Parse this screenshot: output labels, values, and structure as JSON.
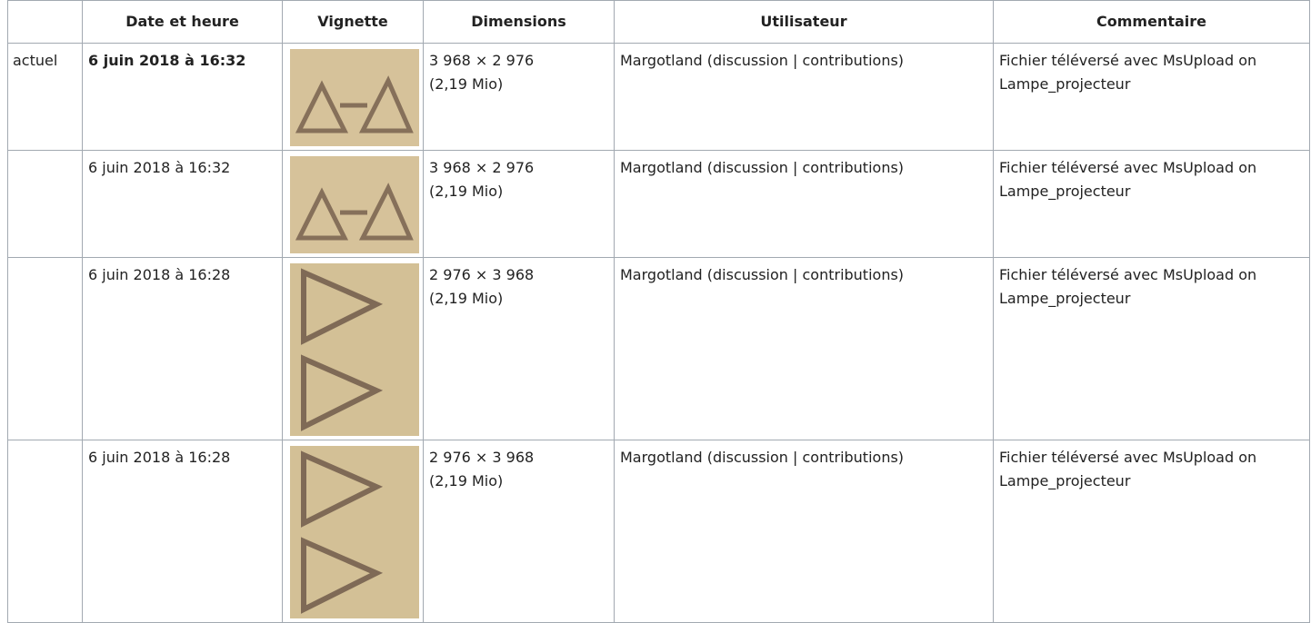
{
  "table": {
    "headers": [
      "Date et heure",
      "Vignette",
      "Dimensions",
      "Utilisateur",
      "Commentaire"
    ],
    "rows": [
      {
        "status": "actuel",
        "date": "6 juin 2018 à 16:32",
        "dimensions": "3 968 × 2 976",
        "size": "(2,19 Mio)",
        "user": "Margotland (discussion | contributions)",
        "comment": "Fichier téléversé avec MsUpload on Lampe_projecteur"
      },
      {
        "date": "6 juin 2018 à 16:32",
        "dimensions": "3 968 × 2 976",
        "size": "(2,19 Mio)",
        "user": "Margotland (discussion | contributions)",
        "comment": "Fichier téléversé avec MsUpload on Lampe_projecteur"
      },
      {
        "date": "6 juin 2018 à 16:28",
        "dimensions": "2 976 × 3 968",
        "size": "(2,19 Mio)",
        "user": "Margotland (discussion | contributions)",
        "comment": "Fichier téléversé avec MsUpload on Lampe_projecteur"
      },
      {
        "date": "6 juin 2018 à 16:28",
        "dimensions": "2 976 × 3 968",
        "size": "(2,19 Mio)",
        "user": "Margotland (discussion | contributions)",
        "comment": "Fichier téléversé avec MsUpload on Lampe_projecteur"
      }
    ]
  }
}
